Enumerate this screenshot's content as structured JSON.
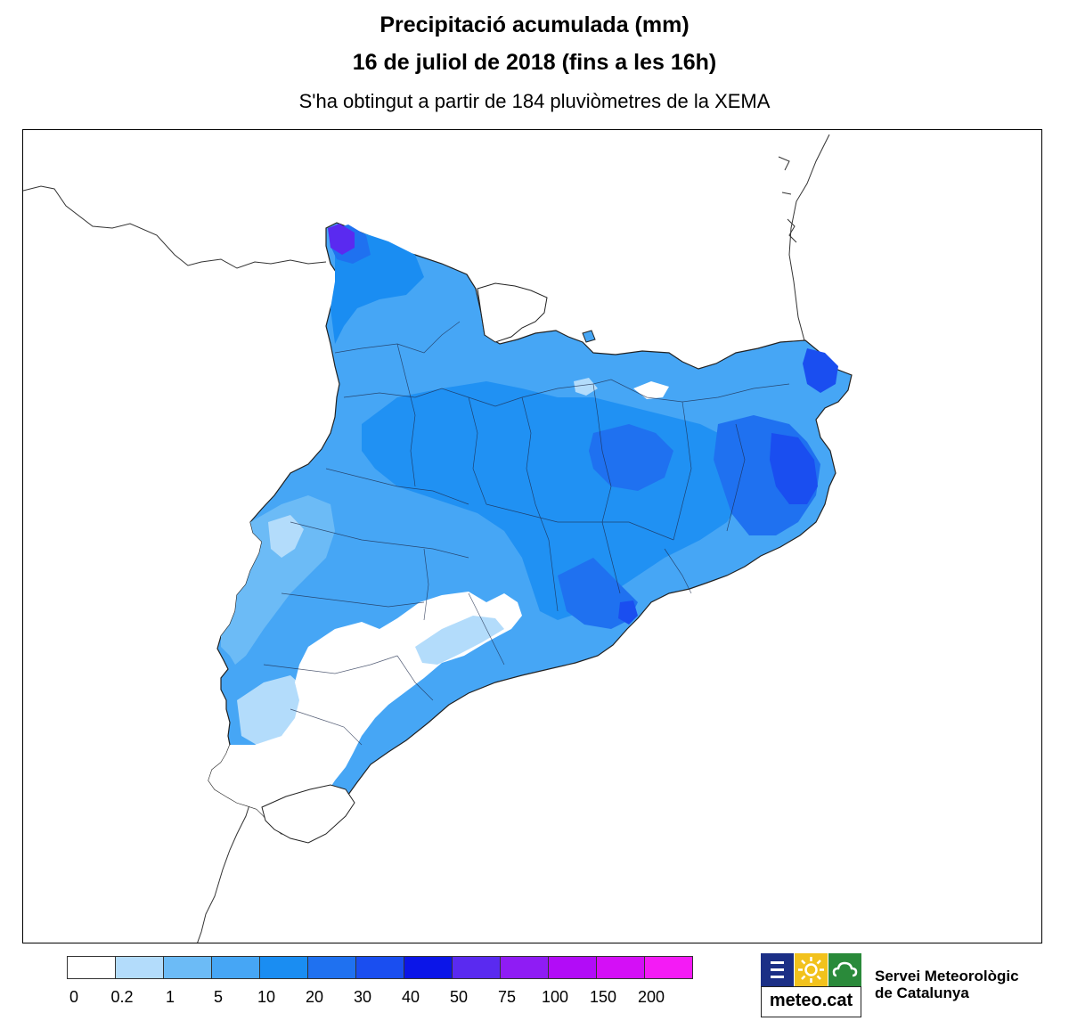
{
  "title": "Precipitació acumulada (mm)",
  "subtitle": "16 de juliol de 2018 (fins a les 16h)",
  "source_note": "S'ha obtingut a partir de 184 pluviòmetres de la XEMA",
  "legend": {
    "thresholds": [
      "0",
      "0.2",
      "1",
      "5",
      "10",
      "20",
      "30",
      "40",
      "50",
      "75",
      "100",
      "150",
      "200"
    ],
    "colors": [
      "#ffffff",
      "#b3dcfb",
      "#6cbbf6",
      "#46a6f5",
      "#1a8df2",
      "#1f71f0",
      "#1a4ef0",
      "#0b15e8",
      "#5a2af0",
      "#8f1cf4",
      "#b20cf7",
      "#d40ff6",
      "#f41bf5"
    ]
  },
  "logo": {
    "brand": "meteo.cat",
    "icons": [
      "menu-lines-icon",
      "sun-icon",
      "cloud-icon"
    ],
    "icon_colors": [
      "#1b2f86",
      "#f2c21c",
      "#2a8a3a"
    ]
  },
  "organization": {
    "line1": "Servei Meteorològic",
    "line2": "de Catalunya"
  },
  "map": {
    "region": "Catalunya",
    "colors": {
      "light": "#6cbbf6",
      "mid": "#46a6f5",
      "high": "#1a8df2",
      "very_high": "#1f71f0",
      "peak": "#1a4ef0",
      "extreme": "#5a2af0",
      "dry": "#ffffff",
      "very_light": "#b3dcfb"
    }
  }
}
